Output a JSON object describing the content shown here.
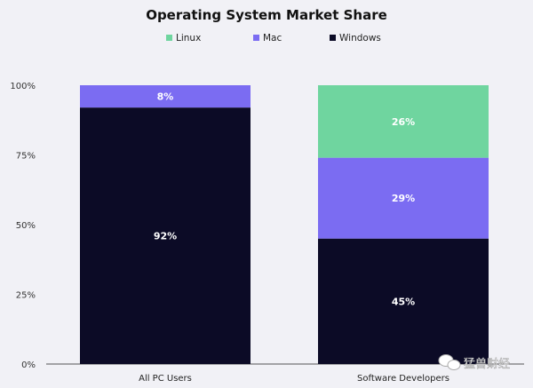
{
  "chart_data": {
    "type": "bar",
    "stacked": true,
    "title": "Operating System Market Share",
    "categories": [
      "All PC Users",
      "Software Developers"
    ],
    "series": [
      {
        "name": "Windows",
        "values": [
          92,
          45
        ],
        "labels": [
          "92%",
          "45%"
        ],
        "color": "#0c0b26"
      },
      {
        "name": "Mac",
        "values": [
          8,
          29
        ],
        "labels": [
          "8%",
          "29%"
        ],
        "color": "#7b6cf2"
      },
      {
        "name": "Linux",
        "values": [
          0,
          26
        ],
        "labels": [
          "",
          "26%"
        ],
        "color": "#6fd59f"
      }
    ],
    "legend_order": [
      "Linux",
      "Mac",
      "Windows"
    ],
    "legend_position": "top",
    "yticks": [
      "0%",
      "25%",
      "50%",
      "75%",
      "100%"
    ],
    "ylim": [
      0,
      100
    ],
    "grid": false
  },
  "watermark": "猛兽财经"
}
